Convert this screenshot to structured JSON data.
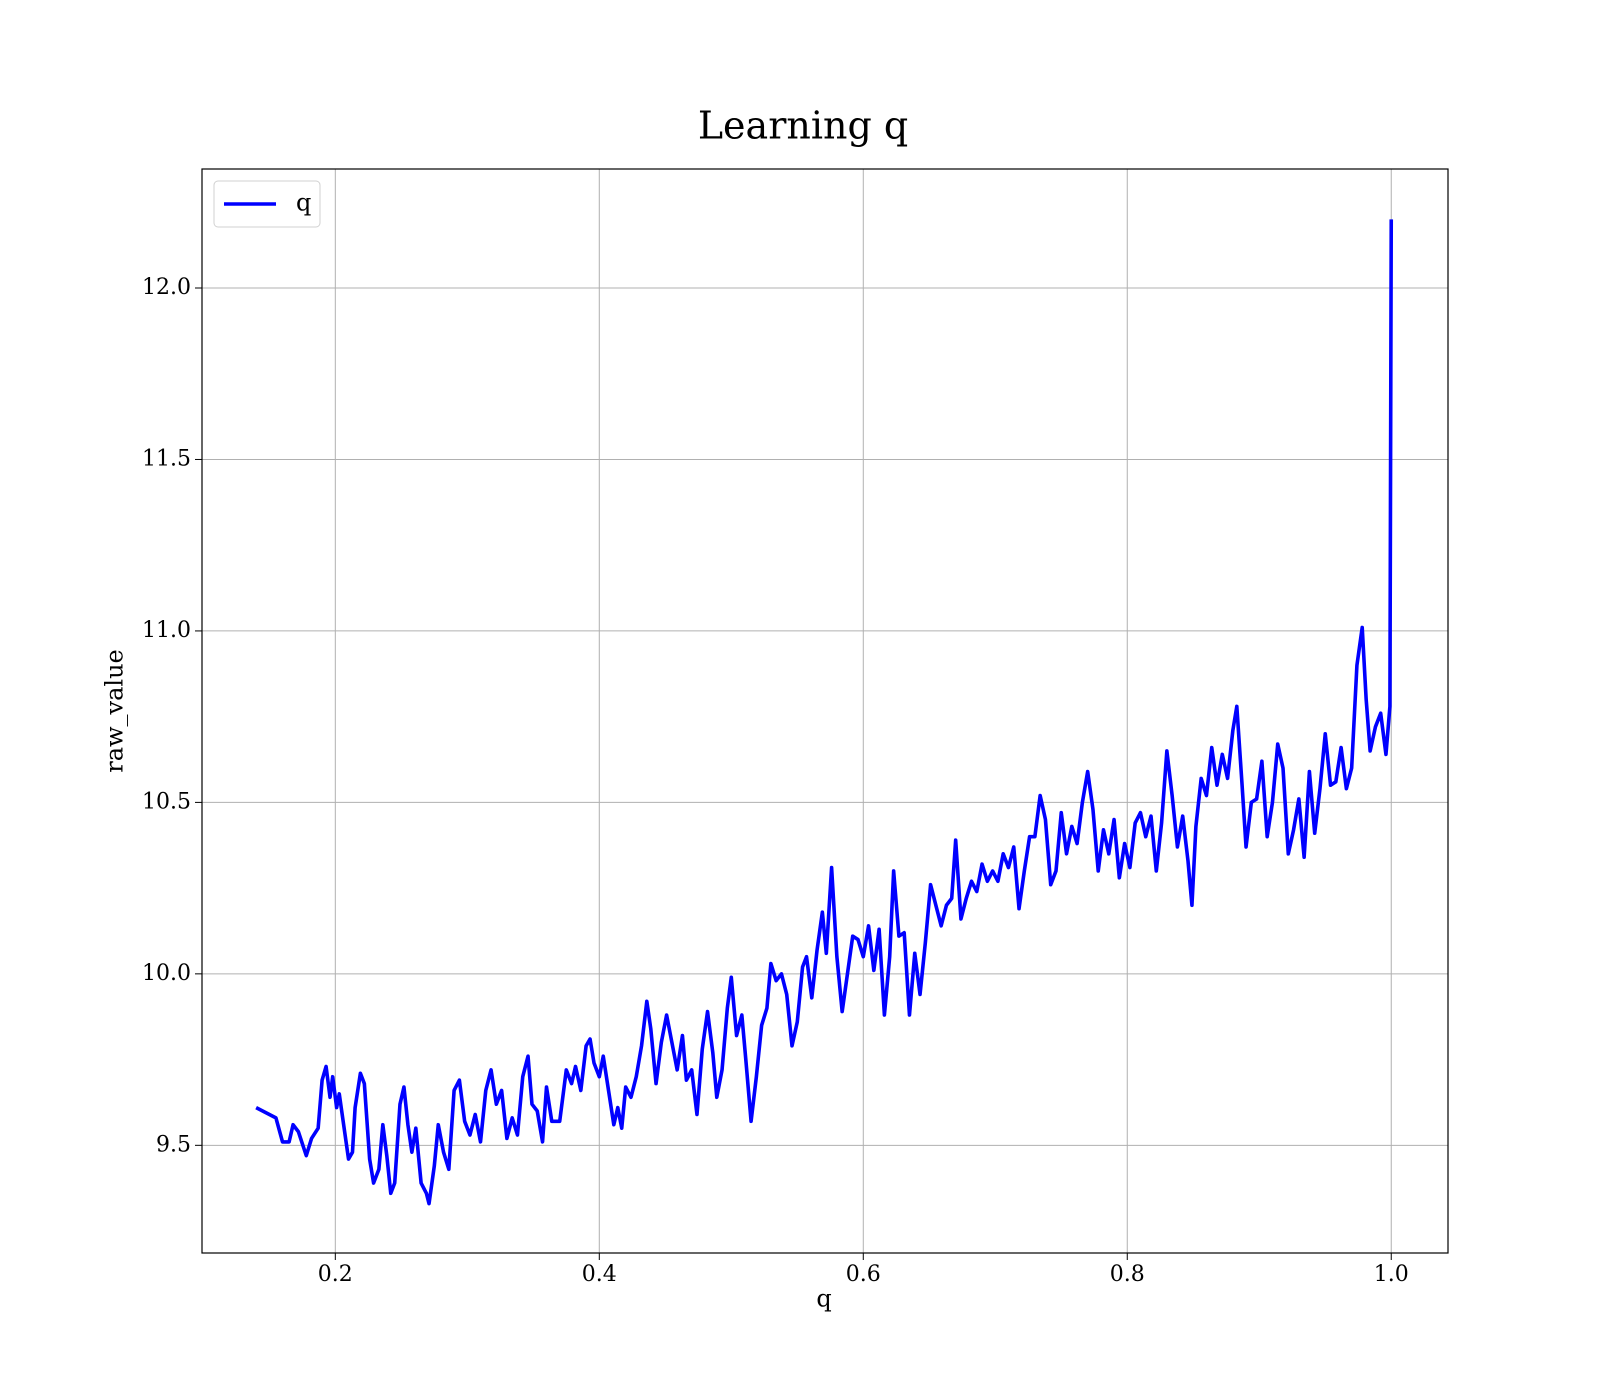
{
  "chart_data": {
    "type": "line",
    "title": "Learning q",
    "xlabel": "q",
    "ylabel": "raw_value",
    "x": [
      0.14,
      0.155,
      0.16,
      0.165,
      0.168,
      0.172,
      0.178,
      0.182,
      0.187,
      0.19,
      0.193,
      0.196,
      0.198,
      0.201,
      0.203,
      0.21,
      0.213,
      0.215,
      0.219,
      0.222,
      0.226,
      0.229,
      0.233,
      0.236,
      0.239,
      0.242,
      0.245,
      0.249,
      0.252,
      0.255,
      0.258,
      0.261,
      0.265,
      0.269,
      0.271,
      0.275,
      0.278,
      0.282,
      0.286,
      0.29,
      0.294,
      0.298,
      0.302,
      0.306,
      0.31,
      0.314,
      0.318,
      0.322,
      0.326,
      0.33,
      0.334,
      0.338,
      0.342,
      0.346,
      0.349,
      0.353,
      0.357,
      0.36,
      0.364,
      0.37,
      0.375,
      0.379,
      0.382,
      0.386,
      0.39,
      0.393,
      0.396,
      0.4,
      0.403,
      0.407,
      0.411,
      0.414,
      0.417,
      0.42,
      0.424,
      0.428,
      0.432,
      0.436,
      0.439,
      0.443,
      0.447,
      0.451,
      0.455,
      0.459,
      0.463,
      0.466,
      0.47,
      0.474,
      0.478,
      0.482,
      0.486,
      0.489,
      0.493,
      0.497,
      0.5,
      0.504,
      0.508,
      0.511,
      0.515,
      0.519,
      0.523,
      0.527,
      0.53,
      0.534,
      0.538,
      0.542,
      0.546,
      0.55,
      0.554,
      0.557,
      0.561,
      0.565,
      0.569,
      0.572,
      0.576,
      0.58,
      0.584,
      0.588,
      0.592,
      0.596,
      0.6,
      0.604,
      0.608,
      0.612,
      0.616,
      0.62,
      0.623,
      0.627,
      0.631,
      0.635,
      0.639,
      0.643,
      0.647,
      0.651,
      0.655,
      0.659,
      0.663,
      0.667,
      0.67,
      0.674,
      0.678,
      0.682,
      0.686,
      0.69,
      0.694,
      0.698,
      0.702,
      0.706,
      0.71,
      0.714,
      0.718,
      0.722,
      0.726,
      0.73,
      0.734,
      0.738,
      0.742,
      0.746,
      0.75,
      0.754,
      0.758,
      0.762,
      0.766,
      0.77,
      0.774,
      0.778,
      0.782,
      0.786,
      0.79,
      0.794,
      0.798,
      0.802,
      0.806,
      0.81,
      0.814,
      0.818,
      0.822,
      0.826,
      0.83,
      0.834,
      0.838,
      0.842,
      0.846,
      0.849,
      0.852,
      0.856,
      0.86,
      0.864,
      0.868,
      0.872,
      0.876,
      0.88,
      0.883,
      0.887,
      0.89,
      0.894,
      0.898,
      0.902,
      0.906,
      0.91,
      0.914,
      0.918,
      0.922,
      0.926,
      0.93,
      0.934,
      0.938,
      0.942,
      0.946,
      0.95,
      0.954,
      0.958,
      0.962,
      0.966,
      0.97,
      0.974,
      0.978,
      0.981,
      0.984,
      0.988,
      0.992,
      0.996,
      0.999,
      1.0
    ],
    "series": [
      {
        "name": "q",
        "color": "#0000ff",
        "values": [
          9.61,
          9.58,
          9.51,
          9.51,
          9.56,
          9.54,
          9.47,
          9.52,
          9.55,
          9.69,
          9.73,
          9.64,
          9.7,
          9.61,
          9.65,
          9.46,
          9.48,
          9.61,
          9.71,
          9.68,
          9.46,
          9.39,
          9.43,
          9.56,
          9.47,
          9.36,
          9.39,
          9.62,
          9.67,
          9.56,
          9.48,
          9.55,
          9.39,
          9.36,
          9.33,
          9.44,
          9.56,
          9.48,
          9.43,
          9.66,
          9.69,
          9.57,
          9.53,
          9.59,
          9.51,
          9.66,
          9.72,
          9.62,
          9.66,
          9.52,
          9.58,
          9.53,
          9.7,
          9.76,
          9.62,
          9.6,
          9.51,
          9.67,
          9.57,
          9.57,
          9.72,
          9.68,
          9.73,
          9.66,
          9.79,
          9.81,
          9.74,
          9.7,
          9.76,
          9.66,
          9.56,
          9.61,
          9.55,
          9.67,
          9.64,
          9.7,
          9.79,
          9.92,
          9.84,
          9.68,
          9.8,
          9.88,
          9.8,
          9.72,
          9.82,
          9.69,
          9.72,
          9.59,
          9.78,
          9.89,
          9.77,
          9.64,
          9.72,
          9.9,
          9.99,
          9.82,
          9.88,
          9.75,
          9.57,
          9.7,
          9.85,
          9.9,
          10.03,
          9.98,
          10.0,
          9.94,
          9.79,
          9.86,
          10.02,
          10.05,
          9.93,
          10.07,
          10.18,
          10.06,
          10.31,
          10.05,
          9.89,
          10.0,
          10.11,
          10.1,
          10.05,
          10.14,
          10.01,
          10.13,
          9.88,
          10.05,
          10.3,
          10.11,
          10.12,
          9.88,
          10.06,
          9.94,
          10.09,
          10.26,
          10.2,
          10.14,
          10.2,
          10.22,
          10.39,
          10.16,
          10.22,
          10.27,
          10.24,
          10.32,
          10.27,
          10.3,
          10.27,
          10.35,
          10.31,
          10.37,
          10.19,
          10.3,
          10.4,
          10.4,
          10.52,
          10.45,
          10.26,
          10.3,
          10.47,
          10.35,
          10.43,
          10.38,
          10.5,
          10.59,
          10.48,
          10.3,
          10.42,
          10.35,
          10.45,
          10.28,
          10.38,
          10.31,
          10.44,
          10.47,
          10.4,
          10.46,
          10.3,
          10.44,
          10.65,
          10.52,
          10.37,
          10.46,
          10.33,
          10.2,
          10.43,
          10.57,
          10.52,
          10.66,
          10.55,
          10.64,
          10.57,
          10.71,
          10.78,
          10.55,
          10.37,
          10.5,
          10.51,
          10.62,
          10.4,
          10.5,
          10.67,
          10.6,
          10.35,
          10.42,
          10.51,
          10.34,
          10.59,
          10.41,
          10.54,
          10.7,
          10.55,
          10.56,
          10.66,
          10.54,
          10.6,
          10.9,
          11.01,
          10.8,
          10.65,
          10.72,
          10.76,
          10.64,
          10.78,
          12.2
        ]
      }
    ],
    "xlim": [
      0.099,
      1.043
    ],
    "ylim": [
      9.186,
      12.347
    ],
    "xticks": [
      0.2,
      0.4,
      0.6,
      0.8,
      {
        "value": 1,
        "label": "1.0"
      }
    ],
    "yticks": [
      9.5,
      {
        "value": 10,
        "label": "10.0"
      },
      10.5,
      {
        "value": 11,
        "label": "11.0"
      },
      11.5,
      {
        "value": 12,
        "label": "12.0"
      }
    ],
    "grid": true,
    "legend": "upper left"
  }
}
